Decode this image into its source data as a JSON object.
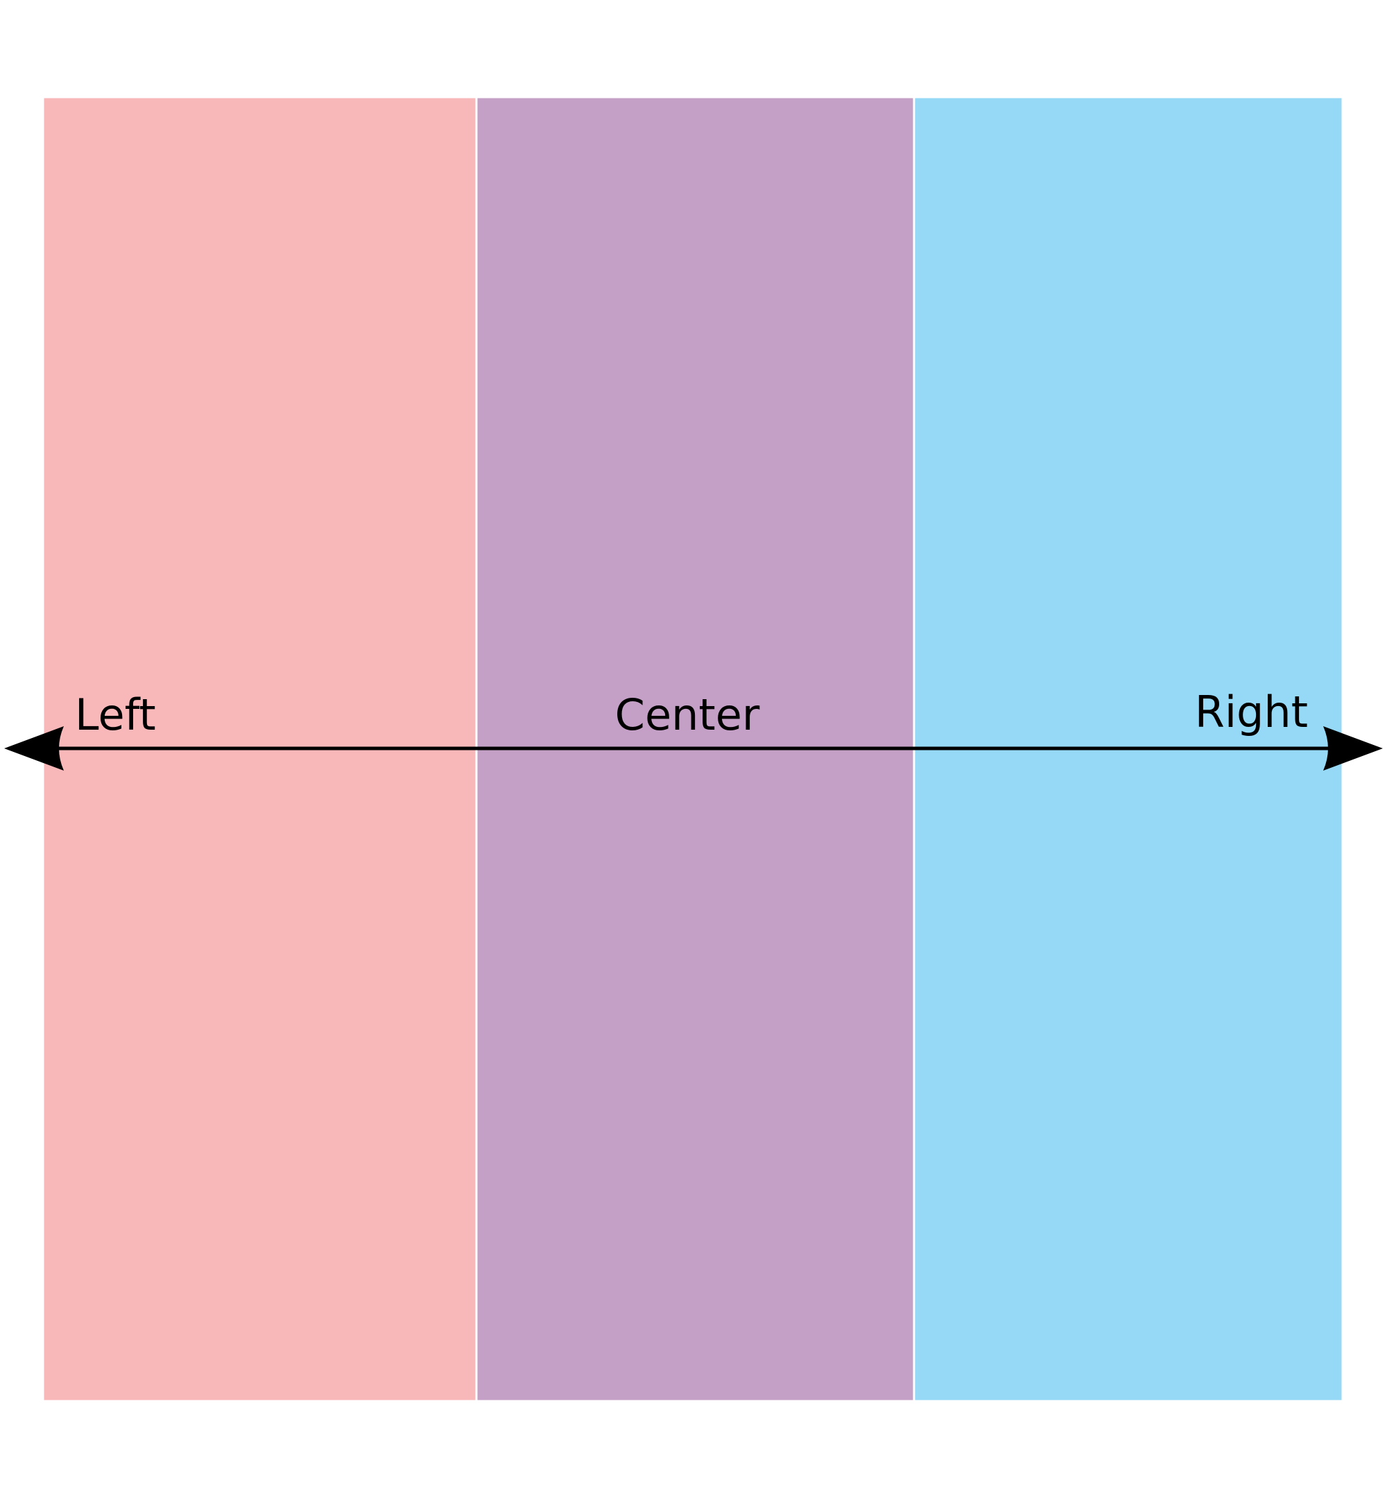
{
  "background_color": "#ffffff",
  "axis_color": "#000000",
  "bands": [
    {
      "id": "left",
      "label": "Left",
      "color": "#f8b8ba"
    },
    {
      "id": "center",
      "label": "Center",
      "color": "#c4a0c6"
    },
    {
      "id": "right",
      "label": "Right",
      "color": "#95d9f6"
    }
  ],
  "axis": {
    "left_icon": "left-arrowhead-icon",
    "right_icon": "right-arrowhead-icon"
  }
}
